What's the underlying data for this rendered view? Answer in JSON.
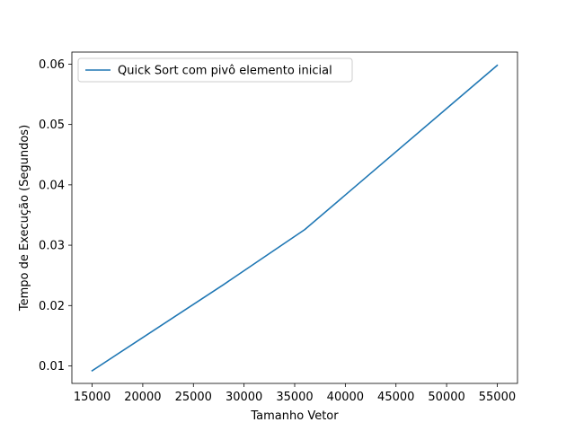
{
  "chart_data": {
    "type": "line",
    "xlabel": "Tamanho Vetor",
    "ylabel": "Tempo de Execução (Segundos)",
    "xlim": [
      13000,
      57000
    ],
    "ylim": [
      0.0071,
      0.062
    ],
    "xticks": [
      15000,
      20000,
      25000,
      30000,
      35000,
      40000,
      45000,
      50000,
      55000
    ],
    "xtick_labels": [
      "15000",
      "20000",
      "25000",
      "30000",
      "35000",
      "40000",
      "45000",
      "50000",
      "55000"
    ],
    "yticks": [
      0.01,
      0.02,
      0.03,
      0.04,
      0.05,
      0.06
    ],
    "ytick_labels": [
      "0.01",
      "0.02",
      "0.03",
      "0.04",
      "0.05",
      "0.06"
    ],
    "grid": false,
    "legend": "top-left",
    "series": [
      {
        "name": "Quick Sort com pivô elemento inicial",
        "color": "#1f77b4",
        "x": [
          15000,
          28000,
          36000,
          55000
        ],
        "y": [
          0.0092,
          0.0235,
          0.0326,
          0.0598
        ]
      }
    ]
  }
}
